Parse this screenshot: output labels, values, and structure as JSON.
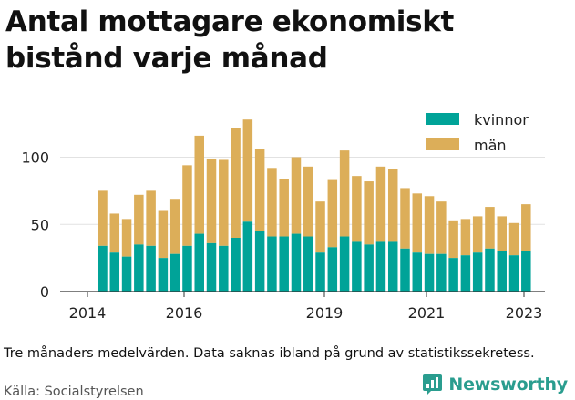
{
  "header": {
    "title": "Antal mottagare ekonomiskt bistånd varje månad"
  },
  "footer": {
    "note": "Tre månaders medelvärden. Data saknas ibland på grund av statistikssekretess.",
    "source": "Källa: Socialstyrelsen",
    "brand": "Newsworthy"
  },
  "colors": {
    "kvinnor": "#00a398",
    "man": "#dcae59",
    "grid": "#e2e2e2",
    "brand": "#2a9d8f"
  },
  "chart_data": {
    "type": "bar",
    "stacked": true,
    "ylim": [
      0,
      130
    ],
    "yticks": [
      0,
      50,
      100
    ],
    "xticks": [
      "2014",
      "2016",
      "2019",
      "2021",
      "2023"
    ],
    "legend_position": "top-right",
    "grid": true,
    "series": [
      {
        "name": "kvinnor",
        "values": [
          34,
          29,
          26,
          35,
          34,
          25,
          28,
          34,
          43,
          36,
          34,
          40,
          52,
          45,
          41,
          41,
          43,
          41,
          29,
          33,
          41,
          37,
          35,
          37,
          37,
          32,
          29,
          28,
          28,
          25,
          27,
          29,
          32,
          30,
          27,
          30
        ]
      },
      {
        "name": "män",
        "values": [
          41,
          29,
          28,
          37,
          41,
          35,
          41,
          60,
          73,
          63,
          64,
          82,
          76,
          61,
          51,
          43,
          57,
          52,
          38,
          50,
          64,
          49,
          47,
          56,
          54,
          45,
          44,
          43,
          39,
          28,
          27,
          27,
          31,
          26,
          24,
          35
        ]
      }
    ]
  }
}
